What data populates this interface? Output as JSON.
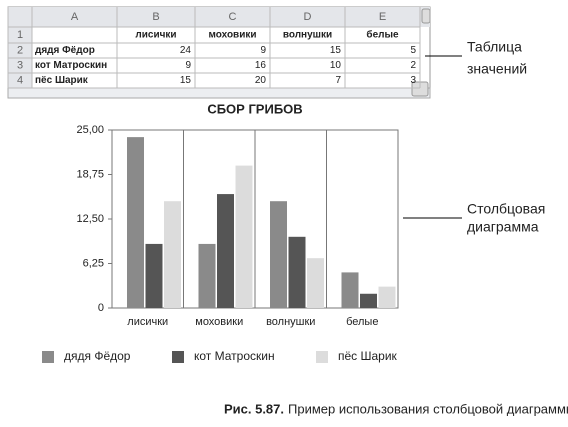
{
  "table": {
    "column_letters": [
      "A",
      "B",
      "C",
      "D",
      "E"
    ],
    "row_numbers": [
      1,
      2,
      3,
      4
    ],
    "header": [
      "лисички",
      "моховики",
      "волнушки",
      "белые"
    ],
    "rows": [
      {
        "label": "дядя Фёдор",
        "values": [
          24,
          9,
          15,
          5
        ]
      },
      {
        "label": "кот Матроскин",
        "values": [
          9,
          16,
          10,
          2
        ]
      },
      {
        "label": "пёс Шарик",
        "values": [
          15,
          20,
          7,
          3
        ]
      }
    ]
  },
  "annotations": {
    "table": [
      "Таблица",
      "значений"
    ],
    "chart": [
      "Столбцовая",
      "диаграмма"
    ]
  },
  "chart_data": {
    "type": "bar",
    "title": "СБОР ГРИБОВ",
    "categories": [
      "лисички",
      "моховики",
      "волнушки",
      "белые"
    ],
    "series": [
      {
        "name": "дядя Фёдор",
        "color": "#8a8a8a",
        "values": [
          24,
          9,
          15,
          5
        ]
      },
      {
        "name": "кот Матроскин",
        "color": "#555555",
        "values": [
          9,
          16,
          10,
          2
        ]
      },
      {
        "name": "пёс Шарик",
        "color": "#dcdcdc",
        "values": [
          15,
          20,
          7,
          3
        ]
      }
    ],
    "ylim": [
      0,
      25
    ],
    "yticks": [
      0,
      {
        "value": 6.25,
        "label": "6,25"
      },
      {
        "value": 12.5,
        "label": "12,50"
      },
      {
        "value": 18.75,
        "label": "18,75"
      },
      {
        "value": 25,
        "label": "25,00"
      }
    ],
    "legend": "bottom"
  },
  "caption": {
    "label": "Рис. 5.87.",
    "text": "Пример использования столбцовой диаграммы"
  }
}
